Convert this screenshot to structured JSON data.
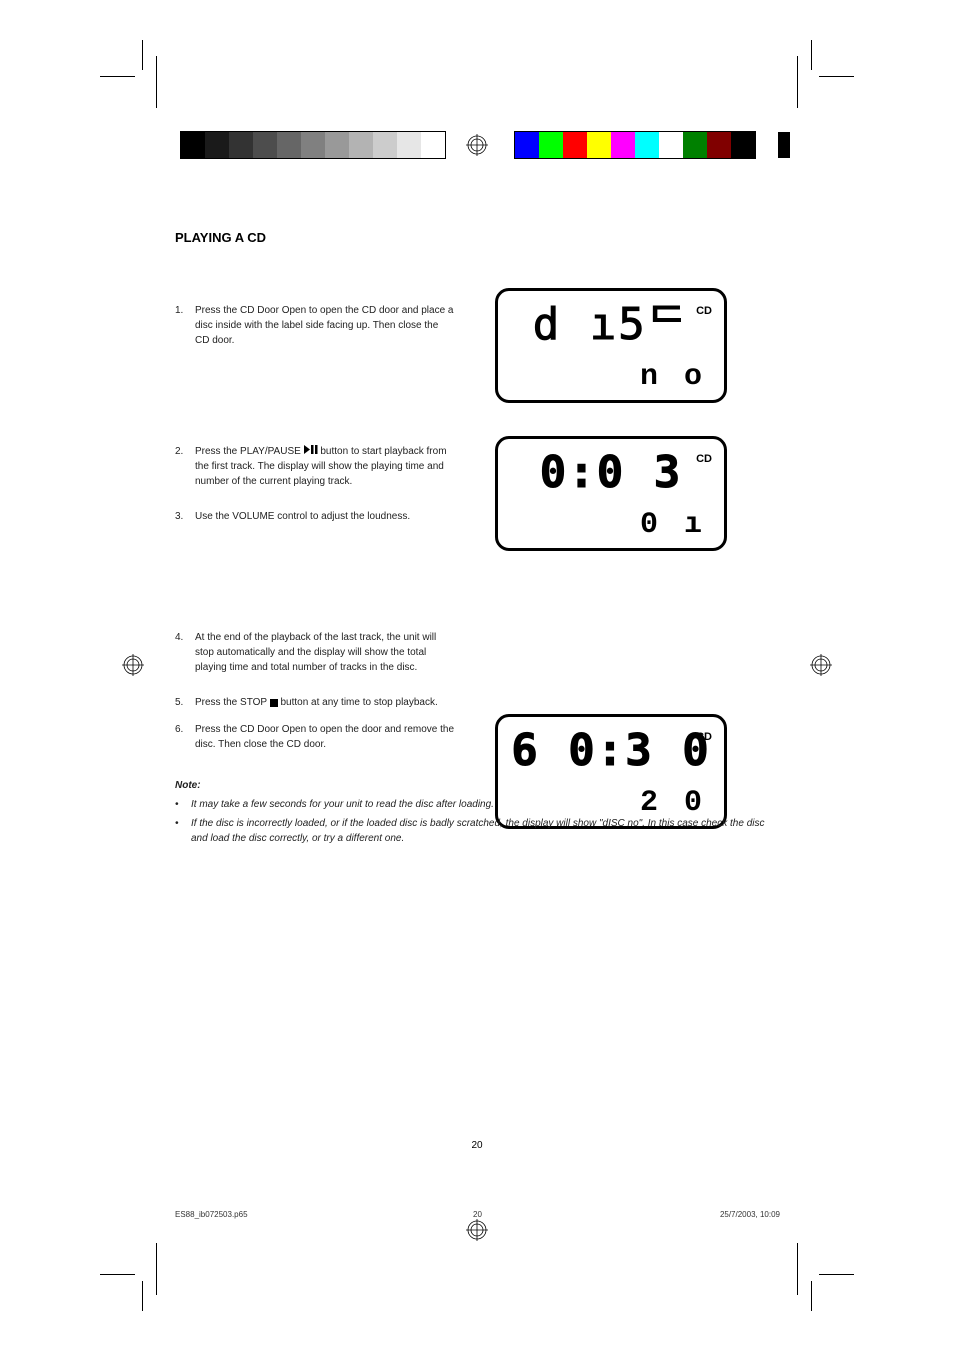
{
  "grayscale_colors": [
    "#000000",
    "#1a1a1a",
    "#333333",
    "#4d4d4d",
    "#666666",
    "#808080",
    "#999999",
    "#b3b3b3",
    "#cccccc",
    "#e6e6e6",
    "#ffffff"
  ],
  "color_bar_colors": [
    "#0000ff",
    "#00ff00",
    "#ff0000",
    "#ffff00",
    "#ff00ff",
    "#00ffff",
    "#ffffff",
    "#008000",
    "#800000",
    "#000000"
  ],
  "section1_title": "PLAYING A CD",
  "step1_num": "1.",
  "step1_text": "Press the CD Door Open to open the CD door and place a disc inside with the label side facing up. Then close the CD door.",
  "step2_num": "2.",
  "step2_text_a": "Press the PLAY/PAUSE ",
  "step2_text_b": " button to start playback from the first track. The display will show the playing time and number of the current playing track.",
  "step3_num": "3.",
  "step3_text": "Use the VOLUME control to adjust the loudness.",
  "step4_num": "4.",
  "step4_text": "At the end of the playback of the last track, the unit will stop automatically and the display will show the total playing time and total number of tracks in the disc.",
  "step5_num": "5.",
  "step5_text_a": "Press the STOP ",
  "step5_text_b": " button at any time to stop playback.",
  "step6_num": "6.",
  "step6_text": "Press the CD Door Open to open the door and remove the disc. Then close the CD door.",
  "note_label": "Note:",
  "note_li1": "It may take a few seconds for your unit to read the disc after loading.",
  "note_li2": "If the disc is incorrectly loaded, or if the loaded disc is badly scratched, the display will show \"dISC no\". In this case check the disc and load the disc correctly, or try a different one.",
  "lcd1_main": "d ı5ᄃ",
  "lcd1_sub": "n o",
  "lcd1_cd": "CD",
  "lcd2_main": "0:0 3",
  "lcd2_sub": "0 ı",
  "lcd2_cd": "CD",
  "lcd3_main": "6 0:3 0",
  "lcd3_sub": "2 0",
  "lcd3_cd": "CD",
  "footer_left": "ES88_ib072503.p65",
  "footer_center": "20",
  "footer_right": "25/7/2003, 10:09",
  "page_number": "20"
}
